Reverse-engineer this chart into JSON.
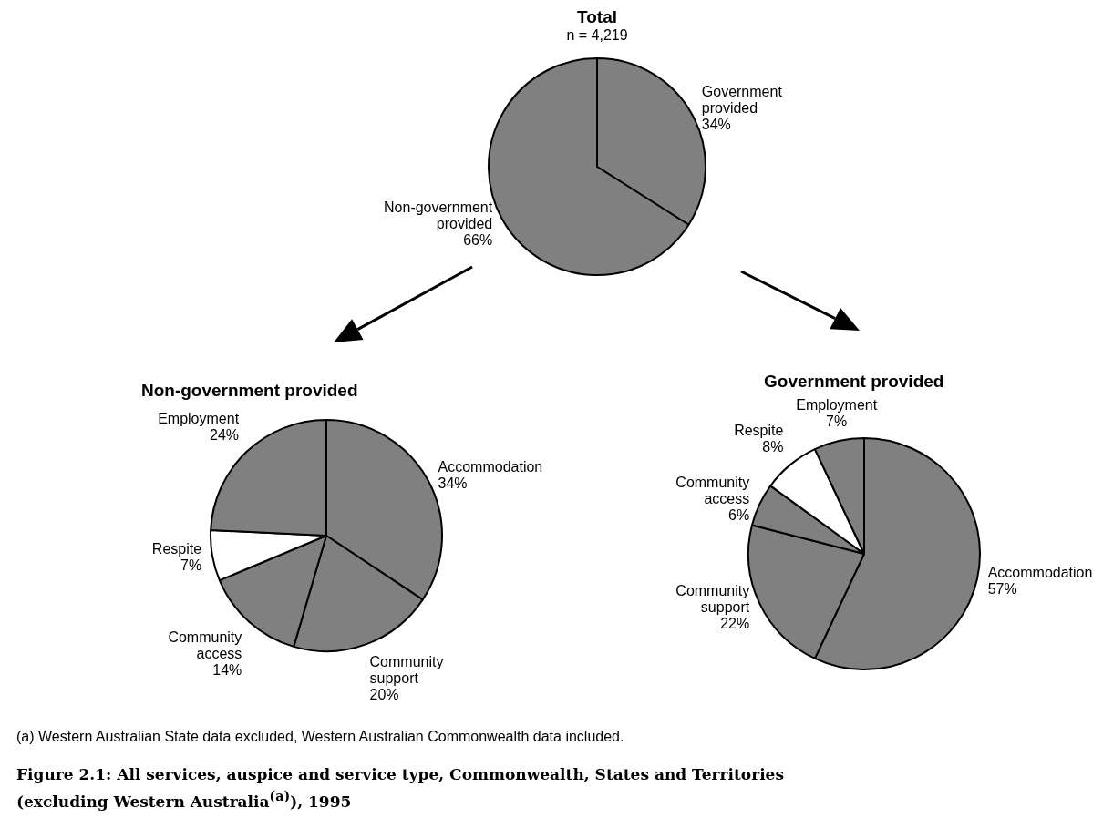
{
  "chart_data": [
    {
      "type": "pie",
      "title": "Total",
      "subtitle": "n = 4,219",
      "categories": [
        "Government provided",
        "Non-government provided"
      ],
      "values": [
        34,
        66
      ],
      "colors": [
        "#808080",
        "#808080"
      ],
      "value_labels": [
        "34%",
        "66%"
      ],
      "annotations": [
        "(a) Western Australian State data excluded, Western Australian Commonwealth data included.",
        "Figure 2.1: All services, auspice and service type, Commonwealth, States and Territories (excluding  Western Australia$^{(a)}$), 1995"
      ]
    },
    {
      "type": "pie",
      "title": "Non-government provided",
      "categories": [
        "Accommodation",
        "Community support",
        "Community access",
        "Respite",
        "Employment"
      ],
      "values": [
        34,
        20,
        14,
        7,
        24
      ],
      "colors": [
        "#808080",
        "#808080",
        "#808080",
        "#ffffff",
        "#808080"
      ],
      "value_labels": [
        "34%",
        "20%",
        "14%",
        "7%",
        "24%"
      ]
    },
    {
      "type": "pie",
      "title": "Government provided",
      "categories": [
        "Accommodation",
        "Community support",
        "Community access",
        "Respite",
        "Employment"
      ],
      "values": [
        57,
        22,
        6,
        8,
        7
      ],
      "colors": [
        "#808080",
        "#808080",
        "#808080",
        "#ffffff",
        "#808080"
      ],
      "value_labels": [
        "57%",
        "22%",
        "6%",
        "8%",
        "7%"
      ]
    }
  ]
}
